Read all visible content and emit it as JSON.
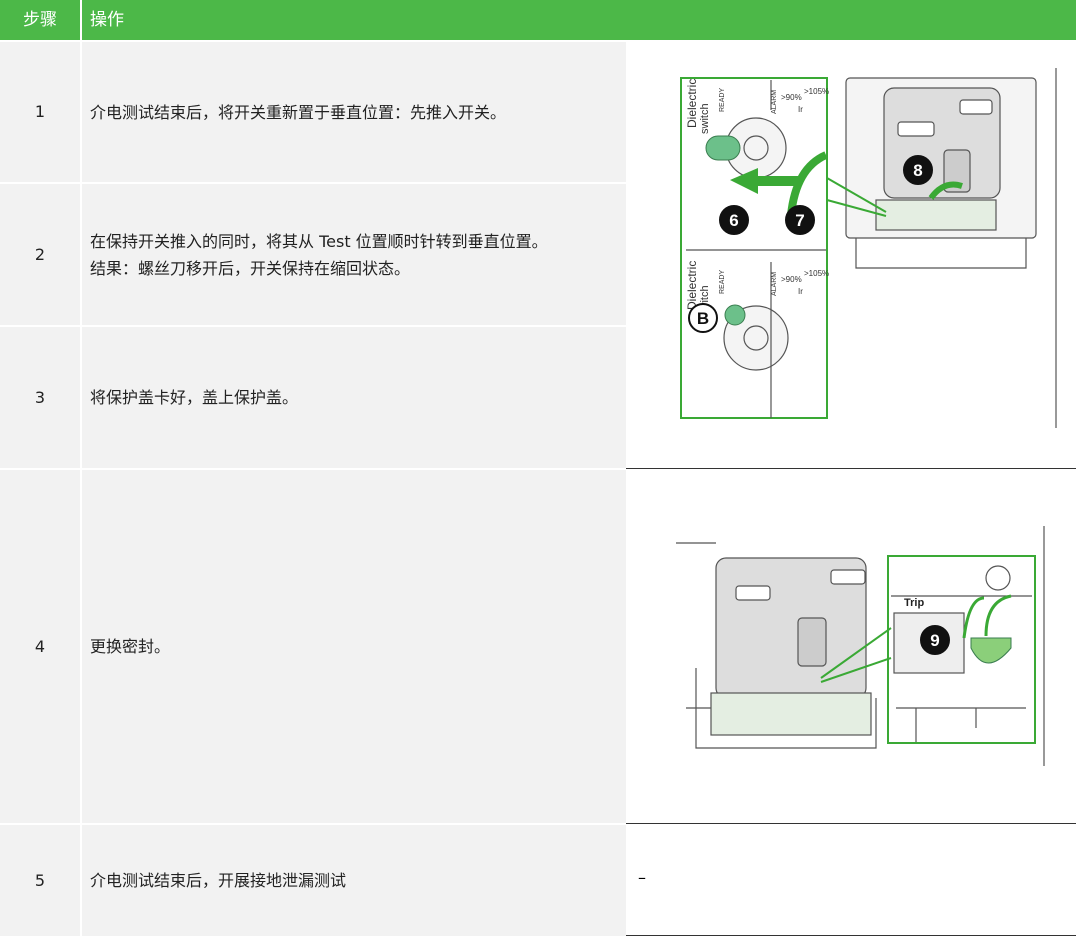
{
  "header": {
    "step": "步骤",
    "action": "操作"
  },
  "rows": [
    {
      "step": "1",
      "text": [
        "介电测试结束后，将开关重新置于垂直位置：先推入开关。"
      ]
    },
    {
      "step": "2",
      "text": [
        "在保持开关推入的同时，将其从 Test 位置顺时针转到垂直位置。",
        "结果：螺丝刀移开后，开关保持在缩回状态。"
      ]
    },
    {
      "step": "3",
      "text": [
        "将保护盖卡好，盖上保护盖。"
      ]
    },
    {
      "step": "4",
      "text": [
        "更换密封。"
      ]
    },
    {
      "step": "5",
      "text": [
        "介电测试结束后，开展接地泄漏测试"
      ]
    }
  ],
  "figure1": {
    "panel_a": {
      "label1": "Dielectric",
      "label2": "switch",
      "ready": "READY",
      "alarm": "ALARM",
      "p90": ">90%",
      "p105": ">105%",
      "ir": "Ir"
    },
    "panel_b": {
      "label1": "Dielectric",
      "label2": "switch",
      "ready": "READY",
      "alarm": "ALARM",
      "p90": ">90%",
      "p105": ">105%",
      "ir": "Ir"
    },
    "callouts": [
      "6",
      "7",
      "8",
      "B"
    ]
  },
  "figure2": {
    "trip": "Trip",
    "callouts": [
      "9"
    ]
  },
  "row5_figure": "–"
}
